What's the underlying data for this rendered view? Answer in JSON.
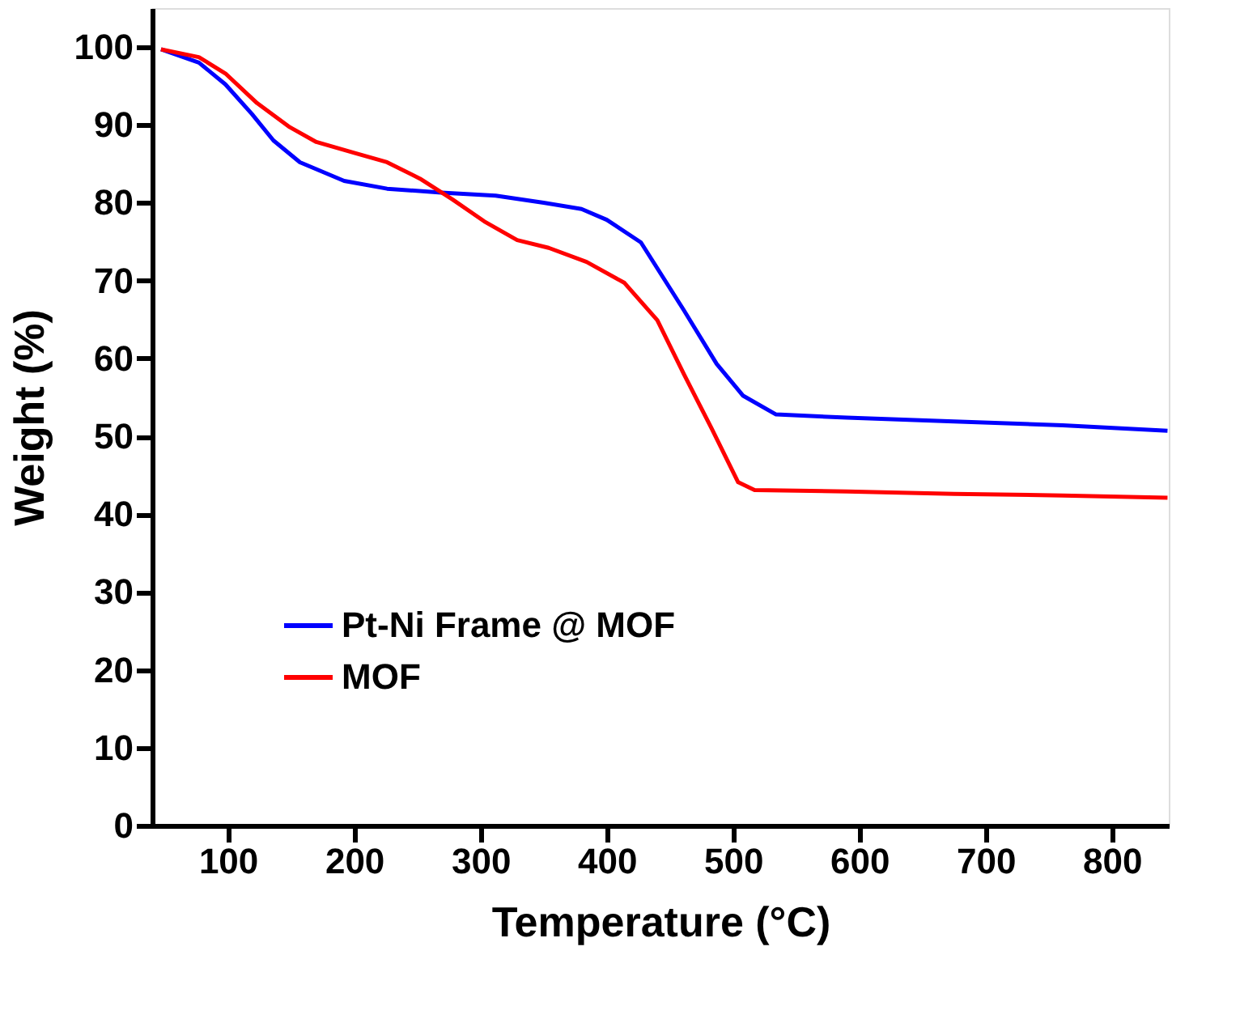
{
  "chart_data": {
    "type": "line",
    "xlabel": "Temperature (°C)",
    "ylabel": "Weight (%)",
    "xlim": [
      40,
      845
    ],
    "ylim": [
      0,
      105
    ],
    "xticks": [
      100,
      200,
      300,
      400,
      500,
      600,
      700,
      800
    ],
    "yticks": [
      0,
      10,
      20,
      30,
      40,
      50,
      60,
      70,
      80,
      90,
      100
    ],
    "grid": false,
    "legend": "bottom left",
    "line_style": "solid",
    "marker": "none",
    "series": [
      {
        "name": "Pt-Ni Frame @ MOF",
        "color": "#0000ff",
        "x": [
          47,
          77,
          98,
          119,
          136,
          157,
          192,
          226,
          269,
          312,
          350,
          380,
          400,
          427,
          461,
          487,
          508,
          534,
          590,
          675,
          761,
          844
        ],
        "values": [
          99.7,
          98,
          95.2,
          91.4,
          88,
          85.2,
          82.8,
          81.8,
          81.3,
          80.9,
          80.0,
          79.2,
          77.8,
          74.9,
          66.2,
          59.3,
          55.2,
          52.8,
          52.4,
          51.9,
          51.4,
          50.7
        ]
      },
      {
        "name": "MOF",
        "color": "#ff0000",
        "x": [
          47,
          77,
          98,
          123,
          149,
          170,
          200,
          226,
          252,
          278,
          303,
          329,
          354,
          384,
          414,
          440,
          461,
          483,
          504,
          517,
          590,
          675,
          761,
          844
        ],
        "values": [
          99.7,
          98.7,
          96.6,
          92.8,
          89.7,
          87.8,
          86.4,
          85.2,
          83.1,
          80.4,
          77.6,
          75.2,
          74.2,
          72.4,
          69.7,
          64.9,
          58,
          51.0,
          44.1,
          43.1,
          42.9,
          42.6,
          42.4,
          42.1
        ]
      }
    ]
  }
}
